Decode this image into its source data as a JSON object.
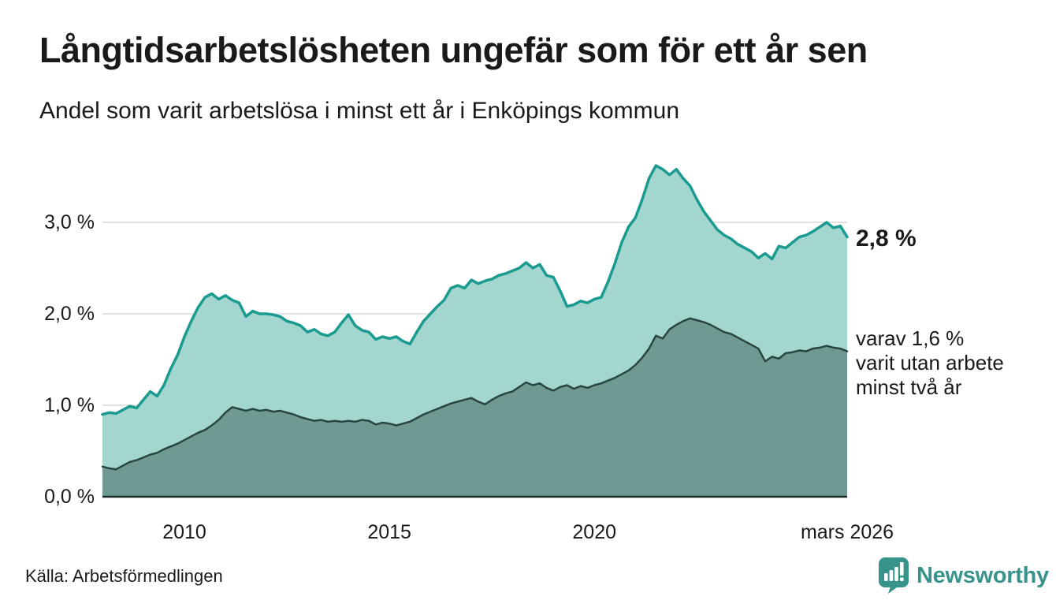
{
  "header": {
    "title": "Långtidsarbetslösheten ungefär som för ett år sen",
    "subtitle": "Andel som varit arbetslösa i minst ett år i Enköpings kommun"
  },
  "annotations": {
    "latest_total": "2,8 %",
    "secondary": "varav 1,6 %\nvarit utan arbete\nminst två år"
  },
  "footer": {
    "source": "Källa: Arbetsförmedlingen",
    "brand_name": "Newsworthy"
  },
  "colors": {
    "series1_line": "#1b9b90",
    "series1_fill": "#a2d6ce",
    "series2_line": "#28463f",
    "series2_fill": "#6f9a93",
    "gridline": "#d9d9d9",
    "baseline": "#1d2d28",
    "text": "#1a1a1a",
    "brand": "#38948b"
  },
  "chart_data": {
    "type": "area",
    "title": "Långtidsarbetslösheten ungefär som för ett år sen",
    "subtitle": "Andel som varit arbetslösa i minst ett år i Enköpings kommun",
    "unit": "percent",
    "grid": true,
    "x_domain": [
      2008.0,
      2026.1667
    ],
    "x_step_years": 0.16667,
    "ylim": [
      0,
      3.7
    ],
    "yticks": [
      {
        "value": 0.0,
        "label": "0,0 %"
      },
      {
        "value": 1.0,
        "label": "1,0 %"
      },
      {
        "value": 2.0,
        "label": "2,0 %"
      },
      {
        "value": 3.0,
        "label": "3,0 %"
      }
    ],
    "xticks": [
      {
        "year": 2010,
        "label": "2010"
      },
      {
        "year": 2015,
        "label": "2015"
      },
      {
        "year": 2020,
        "label": "2020"
      },
      {
        "year": 2026.1667,
        "label": "mars 2026"
      }
    ],
    "series": [
      {
        "name": "Andel arbetslösa minst ett år",
        "latest_label": "2,8 %",
        "line_color": "#1b9b90",
        "fill_color": "#a2d6ce",
        "values": [
          0.9,
          0.92,
          0.91,
          0.95,
          0.99,
          0.97,
          1.06,
          1.15,
          1.1,
          1.22,
          1.4,
          1.55,
          1.75,
          1.92,
          2.07,
          2.18,
          2.22,
          2.16,
          2.2,
          2.15,
          2.12,
          1.97,
          2.03,
          2.0,
          2.0,
          1.99,
          1.97,
          1.92,
          1.9,
          1.87,
          1.8,
          1.83,
          1.78,
          1.76,
          1.8,
          1.9,
          1.99,
          1.87,
          1.82,
          1.8,
          1.72,
          1.75,
          1.73,
          1.75,
          1.7,
          1.67,
          1.8,
          1.92,
          2.0,
          2.08,
          2.15,
          2.28,
          2.31,
          2.28,
          2.37,
          2.33,
          2.36,
          2.38,
          2.42,
          2.44,
          2.47,
          2.5,
          2.56,
          2.5,
          2.54,
          2.42,
          2.4,
          2.25,
          2.08,
          2.1,
          2.14,
          2.12,
          2.16,
          2.18,
          2.35,
          2.55,
          2.78,
          2.95,
          3.05,
          3.25,
          3.48,
          3.62,
          3.58,
          3.52,
          3.58,
          3.48,
          3.4,
          3.25,
          3.12,
          3.02,
          2.92,
          2.86,
          2.82,
          2.76,
          2.72,
          2.68,
          2.61,
          2.66,
          2.6,
          2.74,
          2.72,
          2.78,
          2.84,
          2.86,
          2.9,
          2.95,
          3.0,
          2.94,
          2.96,
          2.84
        ]
      },
      {
        "name": "varav utan arbete minst två år",
        "latest_label": "1,6 %",
        "line_color": "#28463f",
        "fill_color": "#6f9a93",
        "values": [
          0.33,
          0.31,
          0.3,
          0.34,
          0.38,
          0.4,
          0.43,
          0.46,
          0.48,
          0.52,
          0.55,
          0.58,
          0.62,
          0.66,
          0.7,
          0.73,
          0.78,
          0.84,
          0.92,
          0.98,
          0.96,
          0.94,
          0.96,
          0.94,
          0.95,
          0.93,
          0.94,
          0.92,
          0.9,
          0.87,
          0.85,
          0.83,
          0.84,
          0.82,
          0.83,
          0.82,
          0.83,
          0.82,
          0.84,
          0.83,
          0.79,
          0.81,
          0.8,
          0.78,
          0.8,
          0.82,
          0.86,
          0.9,
          0.93,
          0.96,
          0.99,
          1.02,
          1.04,
          1.06,
          1.08,
          1.04,
          1.01,
          1.06,
          1.1,
          1.13,
          1.15,
          1.2,
          1.25,
          1.22,
          1.24,
          1.19,
          1.16,
          1.2,
          1.22,
          1.18,
          1.21,
          1.19,
          1.22,
          1.24,
          1.27,
          1.3,
          1.34,
          1.38,
          1.44,
          1.52,
          1.62,
          1.76,
          1.73,
          1.83,
          1.88,
          1.92,
          1.95,
          1.93,
          1.91,
          1.88,
          1.84,
          1.8,
          1.78,
          1.74,
          1.7,
          1.66,
          1.62,
          1.48,
          1.53,
          1.51,
          1.57,
          1.58,
          1.6,
          1.59,
          1.62,
          1.63,
          1.65,
          1.63,
          1.62,
          1.59
        ]
      }
    ]
  }
}
